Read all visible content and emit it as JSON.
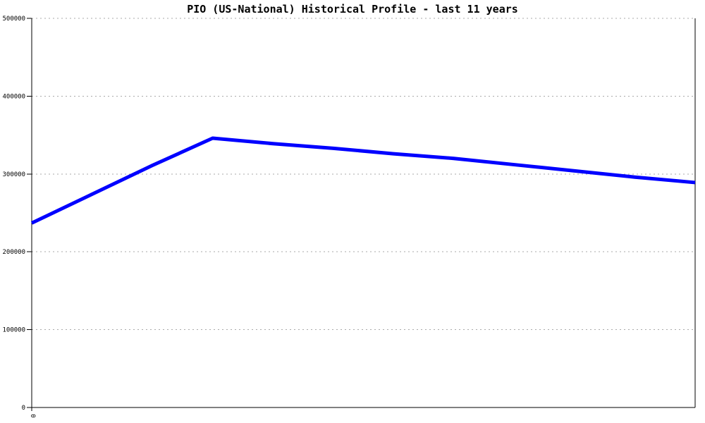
{
  "colors": {
    "background": "#ffffff",
    "line": "#0000ff",
    "grid": "#aaaaaa",
    "axis": "#000000",
    "title_text": "#000000"
  },
  "chart_data": {
    "type": "line",
    "title": "PIO (US-National) Historical Profile - last 11 years",
    "xlabel": "",
    "ylabel": "",
    "xlim": [
      0,
      11
    ],
    "ylim": [
      0,
      500000
    ],
    "grid": "horizontal-dashed",
    "legend": "none",
    "x": [
      0,
      1,
      2,
      3,
      4,
      5,
      6,
      7,
      8,
      9,
      10,
      11
    ],
    "series": [
      {
        "name": "PIO",
        "color": "#0000ff",
        "values": [
          237000,
          274000,
          311000,
          346000,
          339000,
          333000,
          326000,
          320000,
          312000,
          304000,
          296000,
          289000
        ]
      }
    ],
    "y_ticks": [
      0,
      100000,
      200000,
      300000,
      400000,
      500000
    ],
    "y_tick_labels": [
      "0",
      "100000",
      "200000",
      "300000",
      "400000",
      "500000"
    ],
    "x_ticks": [
      0
    ],
    "x_tick_labels": [
      "0"
    ]
  }
}
